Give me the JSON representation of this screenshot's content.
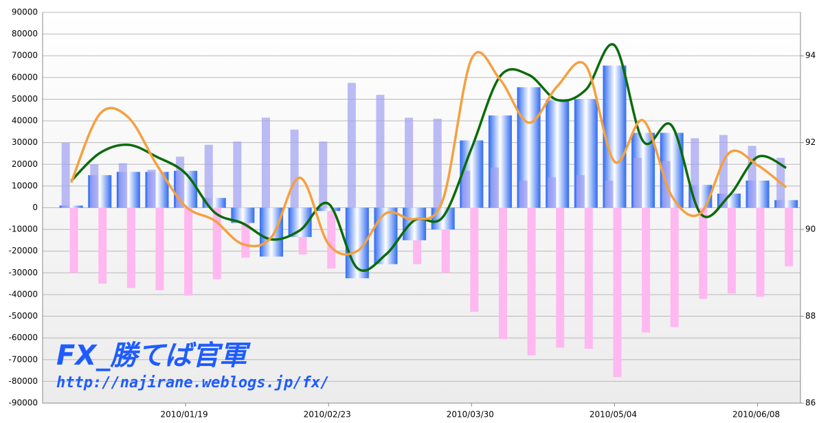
{
  "chart_data": {
    "type": "bar_line",
    "categories": [
      null,
      null,
      null,
      null,
      "2010/01/19",
      null,
      null,
      null,
      null,
      "2010/02/23",
      null,
      null,
      null,
      null,
      "2010/03/30",
      null,
      null,
      null,
      null,
      "2010/05/04",
      null,
      null,
      null,
      null,
      "2010/06/08",
      null
    ],
    "series": [
      {
        "kind": "bar",
        "color": "#ffb8f0",
        "values": [
          -30000,
          -35000,
          -37000,
          -38000,
          -40500,
          -33000,
          -23000,
          -20000,
          -21500,
          -28000,
          -20000,
          -20000,
          -26000,
          -30000,
          -48000,
          -60500,
          -68000,
          -64500,
          -65000,
          -78000,
          -57500,
          -55000,
          -42000,
          -39500,
          -41000,
          -27000
        ]
      },
      {
        "kind": "bar",
        "color": "#2f6bf0",
        "values": [
          1000,
          15000,
          16500,
          16500,
          17000,
          4500,
          -7000,
          -22500,
          -13500,
          -1500,
          -32500,
          -26000,
          -15000,
          -10000,
          31000,
          42500,
          55500,
          49500,
          50000,
          65500,
          34500,
          34500,
          10500,
          6500,
          12500,
          3500
        ]
      },
      {
        "kind": "bar",
        "color": "#9f9ff2",
        "values": [
          30000,
          20000,
          20500,
          17500,
          23500,
          29000,
          30500,
          41500,
          36000,
          30500,
          57500,
          52000,
          41500,
          41000,
          17000,
          18500,
          12500,
          14000,
          15000,
          12500,
          23000,
          21500,
          32000,
          33500,
          28500,
          23000
        ]
      },
      {
        "kind": "line",
        "axis": "y2",
        "color": "#0a6b0a",
        "values": [
          91.12,
          91.76,
          91.95,
          91.67,
          91.29,
          90.4,
          90.14,
          89.77,
          89.98,
          90.59,
          89.11,
          89.42,
          90.21,
          90.29,
          91.87,
          93.53,
          93.56,
          92.98,
          93.22,
          94.24,
          92.03,
          92.39,
          90.37,
          90.77,
          91.67,
          91.42
        ]
      },
      {
        "kind": "line",
        "axis": "y2",
        "color": "#f5a040",
        "values": [
          91.08,
          92.66,
          92.58,
          91.48,
          90.53,
          90.21,
          89.66,
          89.82,
          91.19,
          89.66,
          89.5,
          90.37,
          90.24,
          90.69,
          93.93,
          93.45,
          92.46,
          93.3,
          93.77,
          91.56,
          92.51,
          90.77,
          90.37,
          91.76,
          91.48,
          90.97
        ]
      }
    ],
    "ylim": [
      -90000,
      90000
    ],
    "yticks": [
      -90000,
      -80000,
      -70000,
      -60000,
      -50000,
      -40000,
      -30000,
      -20000,
      -10000,
      0,
      10000,
      20000,
      30000,
      40000,
      50000,
      60000,
      70000,
      80000,
      90000
    ],
    "y2lim": [
      86,
      95
    ],
    "y2ticks": [
      86,
      88,
      90,
      92,
      94
    ],
    "grid": true,
    "annotations": [
      "FX_勝てば官軍",
      "http://najirane.weblogs.jp/fx/"
    ]
  }
}
